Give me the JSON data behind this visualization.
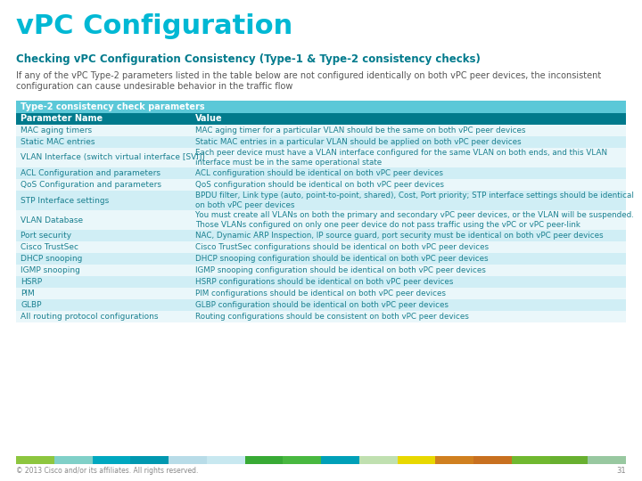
{
  "title": "vPC Configuration",
  "subtitle": "Checking vPC Configuration Consistency (Type-1 & Type-2 consistency checks)",
  "intro_line1": "If any of the vPC Type-2 parameters listed in the table below are not configured identically on both vPC peer devices, the inconsistent",
  "intro_line2": "configuration can cause undesirable behavior in the traffic flow",
  "table_header": "Type-2 consistency check parameters",
  "col_headers": [
    "Parameter Name",
    "Value"
  ],
  "rows": [
    [
      "MAC aging timers",
      "MAC aging timer for a particular VLAN should be the same on both vPC peer devices"
    ],
    [
      "Static MAC entries",
      "Static MAC entries in a particular VLAN should be applied on both vPC peer devices"
    ],
    [
      "VLAN Interface (switch virtual interface [SVI])",
      "Each peer device must have a VLAN interface configured for the same VLAN on both ends, and this VLAN\ninterface must be in the same operational state"
    ],
    [
      "ACL Configuration and parameters",
      "ACL configuration should be identical on both vPC peer devices"
    ],
    [
      "QoS Configuration and parameters",
      "QoS configuration should be identical on both vPC peer devices"
    ],
    [
      "STP Interface settings",
      "BPDU filter, Link type (auto, point-to-point, shared), Cost, Port priority; STP interface settings should be identical\non both vPC peer devices"
    ],
    [
      "VLAN Database",
      "You must create all VLANs on both the primary and secondary vPC peer devices, or the VLAN will be suspended.\nThose VLANs configured on only one peer device do not pass traffic using the vPC or vPC peer-link"
    ],
    [
      "Port security",
      "NAC, Dynamic ARP Inspection, IP source guard, port security must be identical on both vPC peer devices"
    ],
    [
      "Cisco TrustSec",
      "Cisco TrustSec configurations should be identical on both vPC peer devices"
    ],
    [
      "DHCP snooping",
      "DHCP snooping configuration should be identical on both vPC peer devices"
    ],
    [
      "IGMP snooping",
      "IGMP snooping configuration should be identical on both vPC peer devices"
    ],
    [
      "HSRP",
      "HSRP configurations should be identical on both vPC peer devices"
    ],
    [
      "PIM",
      "PIM configurations should be identical on both vPC peer devices"
    ],
    [
      "GLBP",
      "GLBP configuration should be identical on both vPC peer devices"
    ],
    [
      "All routing protocol configurations",
      "Routing configurations should be consistent on both vPC peer devices"
    ]
  ],
  "title_color": "#00b8d4",
  "subtitle_color": "#007a8c",
  "intro_color": "#555555",
  "table_header_bg": "#5bc8d8",
  "table_header_text": "#ffffff",
  "col_header_bg": "#007a8c",
  "col_header_text": "#ffffff",
  "row_alt_bg": "#d0eef5",
  "row_norm_bg": "#eaf7fa",
  "row_text_color": "#1a8090",
  "footer_text": "© 2013 Cisco and/or its affiliates. All rights reserved.",
  "page_num": "31",
  "footer_colors": [
    "#8dc63f",
    "#80d0c8",
    "#00a8c0",
    "#0098b0",
    "#b8dce8",
    "#c8e8f0",
    "#38aa35",
    "#48b840",
    "#00a0b8",
    "#c0e0b0",
    "#e8d800",
    "#d08020",
    "#c87020",
    "#70b830",
    "#68b030",
    "#98c8a0"
  ],
  "bg_color": "#ffffff"
}
